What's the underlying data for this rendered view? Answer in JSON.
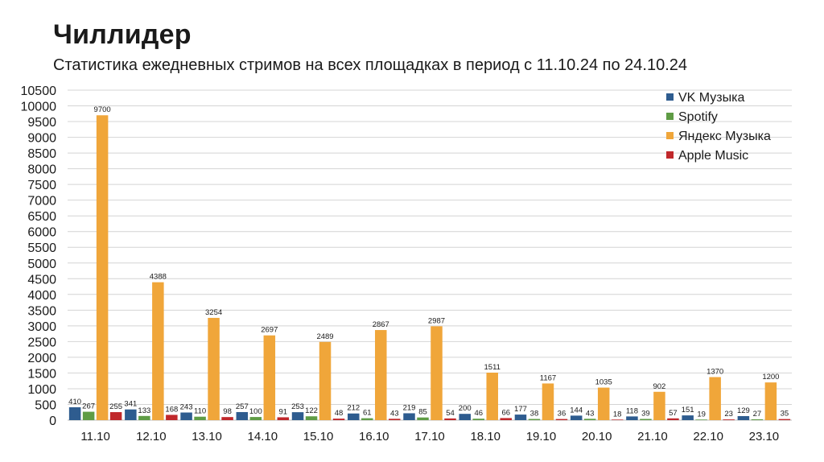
{
  "header": {
    "title": "Чиллидер",
    "subtitle": "Статистика ежедневных стримов на всех площадках в период с 11.10.24 по 24.10.24"
  },
  "chart_data": {
    "type": "bar",
    "categories": [
      "11.10",
      "12.10",
      "13.10",
      "14.10",
      "15.10",
      "16.10",
      "17.10",
      "18.10",
      "19.10",
      "20.10",
      "21.10",
      "22.10",
      "23.10"
    ],
    "series": [
      {
        "name": "VK Музыка",
        "color": "#2e5c8f",
        "values": [
          410,
          341,
          243,
          257,
          253,
          212,
          219,
          200,
          177,
          144,
          118,
          151,
          129
        ]
      },
      {
        "name": "Spotify",
        "color": "#5f9c45",
        "values": [
          267,
          133,
          110,
          100,
          122,
          61,
          85,
          46,
          38,
          43,
          39,
          19,
          27
        ]
      },
      {
        "name": "Яндекс Музыка",
        "color": "#f0a63a",
        "values": [
          9700,
          4388,
          3254,
          2697,
          2489,
          2867,
          2987,
          1511,
          1167,
          1035,
          902,
          1370,
          1200
        ]
      },
      {
        "name": "Apple Music",
        "color": "#c0282b",
        "values": [
          255,
          168,
          98,
          91,
          48,
          43,
          54,
          66,
          36,
          18,
          57,
          23,
          35
        ]
      }
    ],
    "ylim": [
      0,
      10500
    ],
    "ytick_step": 500,
    "grid": true,
    "legend": "top-right"
  }
}
